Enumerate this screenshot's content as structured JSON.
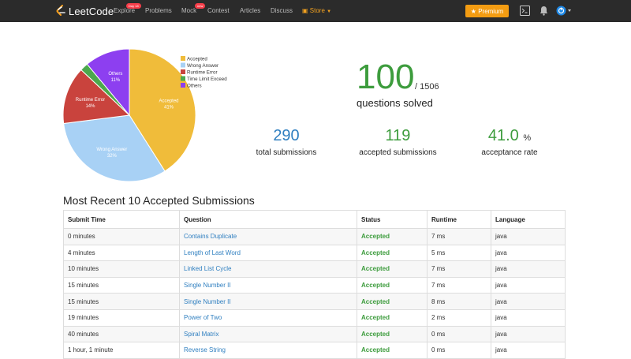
{
  "nav": {
    "brand": "LeetCode",
    "items": [
      {
        "label": "Explore",
        "badge": "Day 18"
      },
      {
        "label": "Problems"
      },
      {
        "label": "Mock",
        "badge": "new"
      },
      {
        "label": "Contest"
      },
      {
        "label": "Articles"
      },
      {
        "label": "Discuss"
      },
      {
        "label": "Store"
      }
    ],
    "premium_label": "★ Premium",
    "colors": {
      "bar": "#2b2b2b",
      "store": "#f0a020",
      "premium": "#f39c12"
    }
  },
  "chart_data": {
    "type": "pie",
    "categories": [
      "Accepted",
      "Wrong Answer",
      "Runtime Error",
      "Time Limit Exceed",
      "Others"
    ],
    "values": [
      41,
      32,
      14,
      2,
      11
    ],
    "colors": [
      "#f0bc3a",
      "#a8d1f5",
      "#c9433d",
      "#4ca84c",
      "#8d3ff0"
    ],
    "slice_labels": [
      {
        "name": "Accepted",
        "pct": "41%"
      },
      {
        "name": "Wrong Answer",
        "pct": "32%"
      },
      {
        "name": "Runtime Error",
        "pct": "14%"
      },
      {
        "name": "",
        "pct": ""
      },
      {
        "name": "Others",
        "pct": "11%"
      }
    ],
    "legend": [
      "Accepted",
      "Wrong Answer",
      "Runtime Error",
      "Time Limit Exceed",
      "Others"
    ],
    "legend_position": "top-right"
  },
  "stats": {
    "solved": "100",
    "total": "/ 1506",
    "solved_label": "questions solved",
    "total_submissions": "290",
    "total_submissions_label": "total submissions",
    "accepted_submissions": "119",
    "accepted_submissions_label": "accepted submissions",
    "acceptance_rate": "41.0",
    "acceptance_rate_unit": "%",
    "acceptance_rate_label": "acceptance rate",
    "colors": {
      "green": "#3d9c3d",
      "blue": "#2f7fc0"
    }
  },
  "recent": {
    "title": "Most Recent 10 Accepted Submissions",
    "columns": [
      "Submit Time",
      "Question",
      "Status",
      "Runtime",
      "Language"
    ],
    "rows": [
      {
        "time": "0 minutes",
        "question": "Contains Duplicate",
        "status": "Accepted",
        "runtime": "7 ms",
        "language": "java"
      },
      {
        "time": "4 minutes",
        "question": "Length of Last Word",
        "status": "Accepted",
        "runtime": "5 ms",
        "language": "java"
      },
      {
        "time": "10 minutes",
        "question": "Linked List Cycle",
        "status": "Accepted",
        "runtime": "7 ms",
        "language": "java"
      },
      {
        "time": "15 minutes",
        "question": "Single Number II",
        "status": "Accepted",
        "runtime": "7 ms",
        "language": "java"
      },
      {
        "time": "15 minutes",
        "question": "Single Number II",
        "status": "Accepted",
        "runtime": "8 ms",
        "language": "java"
      },
      {
        "time": "19 minutes",
        "question": "Power of Two",
        "status": "Accepted",
        "runtime": "2 ms",
        "language": "java"
      },
      {
        "time": "40 minutes",
        "question": "Spiral Matrix",
        "status": "Accepted",
        "runtime": "0 ms",
        "language": "java"
      },
      {
        "time": "1 hour, 1 minute",
        "question": "Reverse String",
        "status": "Accepted",
        "runtime": "0 ms",
        "language": "java"
      }
    ]
  }
}
